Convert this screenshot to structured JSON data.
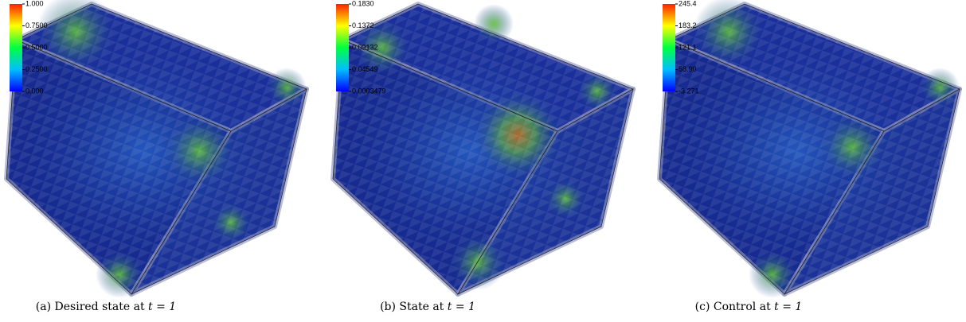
{
  "panels": [
    {
      "caption": "(a) Desired state at",
      "math": "t = 1",
      "colorbar": [
        "1.000",
        "0.7500",
        "0.5000",
        "0.2500",
        "0.000"
      ]
    },
    {
      "caption": "(b) State at",
      "math": "t = 1",
      "colorbar": [
        "0.1830",
        "0.1372",
        "0.09132",
        "0.04549",
        "0.0003479"
      ]
    },
    {
      "caption": "(c) Control at",
      "math": "t = 1",
      "colorbar": [
        "245.4",
        "183.2",
        "121.1",
        "58.90",
        "-3.271"
      ]
    }
  ]
}
